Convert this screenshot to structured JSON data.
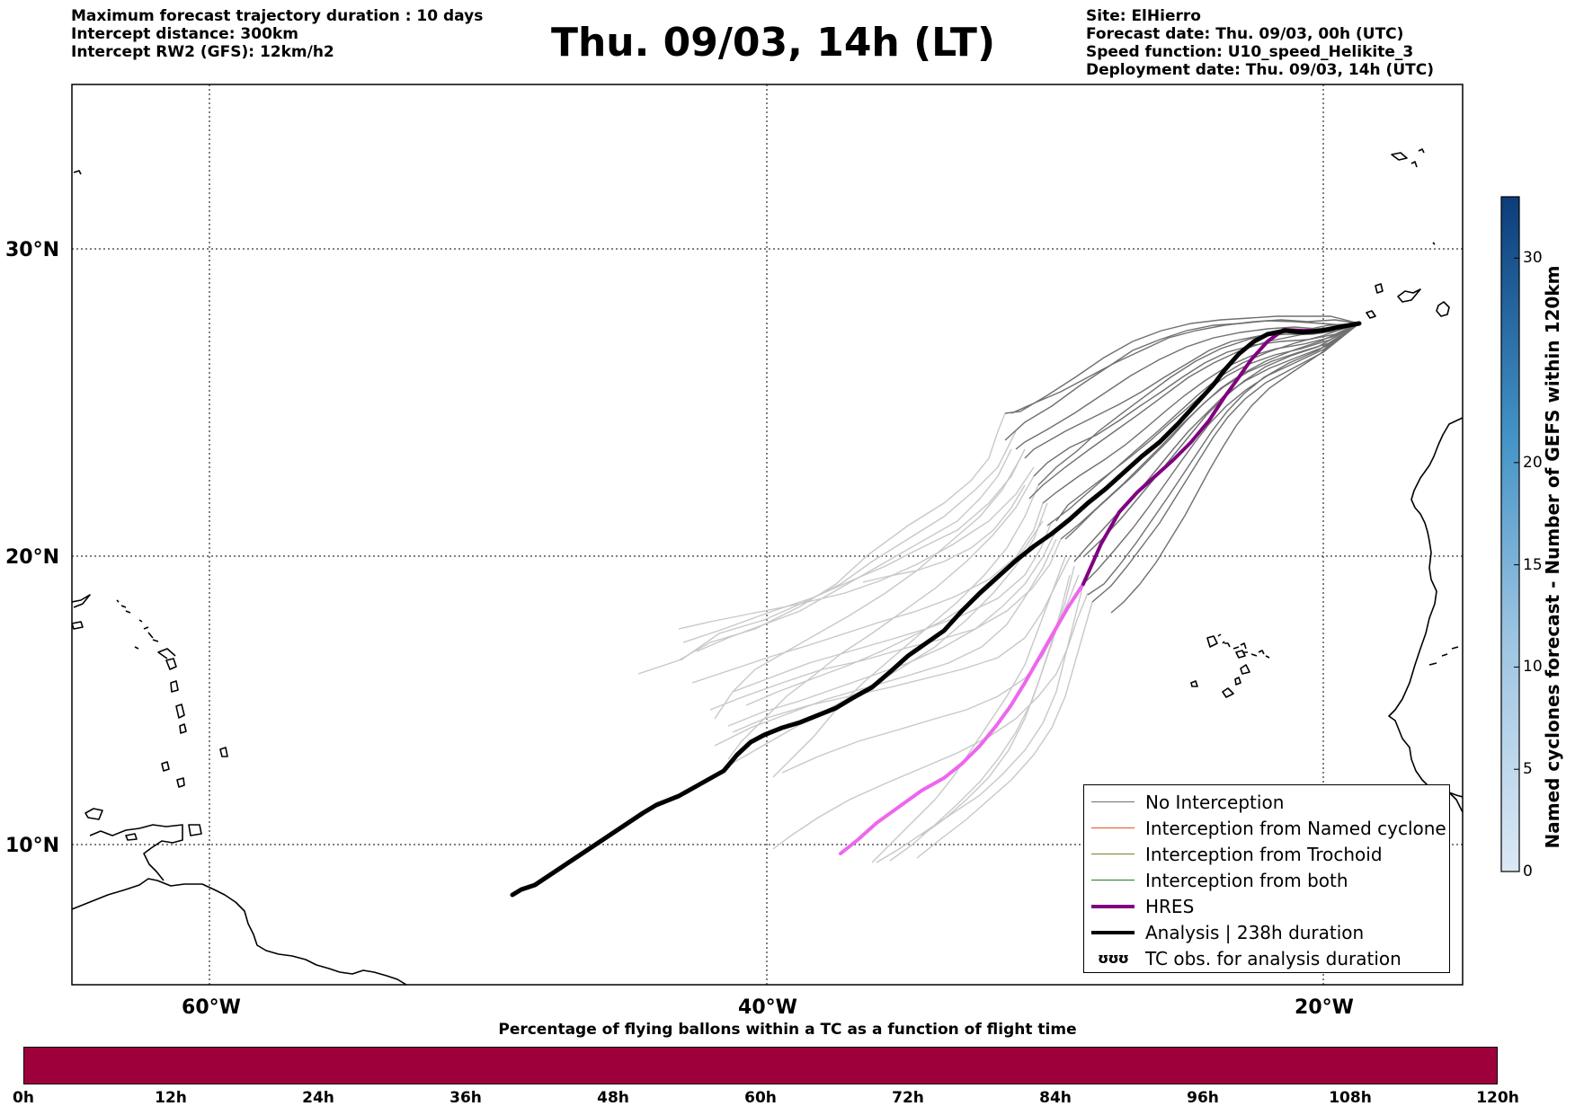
{
  "header": {
    "left_lines": [
      "Maximum forecast trajectory duration : 10 days",
      "Intercept distance: 300km",
      "Intercept RW2 (GFS):  12km/h2"
    ],
    "title": "Thu. 09/03, 14h (LT)",
    "right_lines": [
      "Site: ElHierro",
      "Forecast date: Thu. 09/03, 00h (UTC)",
      "Speed function: U10_speed_Helikite_3",
      "Deployment date: Thu. 09/03, 14h (UTC)"
    ]
  },
  "map": {
    "lat_labels": [
      "30°N",
      "20°N",
      "10°N"
    ],
    "lon_labels": [
      "60°W",
      "40°W",
      "20°W"
    ],
    "colors": {
      "no_interception": "#707070",
      "ensemble_light": "#c8c8c8",
      "hres": "#800080",
      "hres_light": "#ee66ee",
      "analysis": "#000000"
    }
  },
  "legend": {
    "items": [
      {
        "label": "No Interception",
        "color": "#707070",
        "style": "thin"
      },
      {
        "label": "Interception from Named cyclone",
        "color": "#e8501e",
        "style": "thin"
      },
      {
        "label": "Interception from Trochoid",
        "color": "#7f7f1e",
        "style": "thin"
      },
      {
        "label": "Interception from both",
        "color": "#1e7f1e",
        "style": "thin"
      },
      {
        "label": "HRES",
        "color": "#800080",
        "style": "thick"
      },
      {
        "label": "Analysis | 238h duration",
        "color": "#000000",
        "style": "thick"
      },
      {
        "label": "TC obs. for analysis duration",
        "color": "#000000",
        "style": "glyph",
        "glyph": "ʊʊʊ"
      }
    ]
  },
  "colorbar": {
    "title": "Named cyclones forecast - Number of GEFS within 120km",
    "ticks": [
      "0",
      "5",
      "10",
      "15",
      "20",
      "30"
    ],
    "tick_values": [
      0,
      5,
      10,
      15,
      20,
      30
    ],
    "min": 0,
    "max": 33,
    "color_low": "#dbe8f5",
    "color_high": "#0b3d7a"
  },
  "percentage_bar": {
    "title": "Percentage of flying ballons within a TC as a function of flight time",
    "ticks": [
      "0h",
      "12h",
      "24h",
      "36h",
      "48h",
      "60h",
      "72h",
      "84h",
      "96h",
      "108h",
      "120h"
    ],
    "color": "#9e003c"
  }
}
